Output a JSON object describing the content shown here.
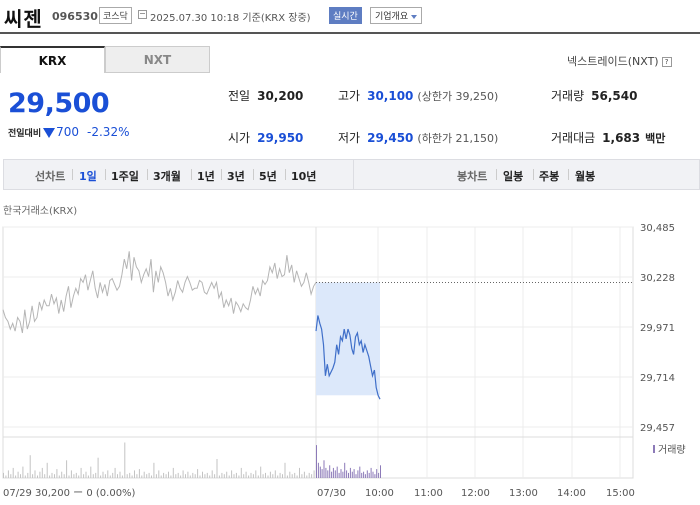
{
  "header": {
    "name": "씨젠",
    "code": "096530",
    "market": "코스닥",
    "datetime": "2025.07.30 10:18 기준(KRX 장중)",
    "realtime_label": "실시간",
    "company_info_label": "기업개요"
  },
  "exchange_tabs": [
    "KRX",
    "NXT"
  ],
  "nxt_trade_label": "넥스트레이드(NXT)",
  "quote": {
    "price": "29,500",
    "change_label": "전일대비",
    "change": "700",
    "change_pct": "-2.32%"
  },
  "stats": {
    "prev_close": {
      "label": "전일",
      "value": "30,200"
    },
    "high": {
      "label": "고가",
      "value": "30,100",
      "sub": "(상한가 39,250)"
    },
    "volume": {
      "label": "거래량",
      "value": "56,540"
    },
    "open": {
      "label": "시가",
      "value": "29,950"
    },
    "low": {
      "label": "저가",
      "value": "29,450",
      "sub": "(하한가 21,150)"
    },
    "amount": {
      "label": "거래대금",
      "value": "1,683",
      "unit": "백만"
    }
  },
  "period_bar": {
    "line_label": "선차트",
    "line_periods": [
      "1일",
      "1주일",
      "3개월",
      "1년",
      "3년",
      "5년",
      "10년"
    ],
    "selected": "1일",
    "candle_label": "봉차트",
    "candle_periods": [
      "일봉",
      "주봉",
      "월봉"
    ]
  },
  "chart_exchange_label": "한국거래소(KRX)",
  "colors": {
    "accent": "#1a4fd6",
    "today_line": "#3f6fc9",
    "prev_line": "#b5b5b5",
    "fill": "#dce8fa",
    "volume_today": "#8c7ab8",
    "volume_prev": "#c3c3c3"
  },
  "chart_data": {
    "type": "line",
    "y_ticks": [
      "30,485",
      "30,228",
      "29,971",
      "29,714",
      "29,457"
    ],
    "ylim": [
      29457,
      30485
    ],
    "x_ticks": [
      "07/29",
      "07/30",
      "10:00",
      "11:00",
      "12:00",
      "13:00",
      "14:00",
      "15:00"
    ],
    "prev_day_caption": "07/29  30,200 ー 0 (0.00%)",
    "volume_legend": "거래량",
    "prev_close_ref": 30200,
    "series": [
      {
        "values": [
          30060,
          30020,
          30000,
          29960,
          29990,
          29950,
          30020,
          30000,
          29940,
          30060,
          29960,
          30000,
          30080,
          30000,
          30020,
          30100,
          30060,
          30110,
          30080,
          30080,
          30140,
          30090,
          30120,
          30040,
          30110,
          30050,
          30130,
          30180,
          30070,
          30130,
          30170,
          30140,
          30220,
          30200,
          30240,
          30160,
          30210,
          30260,
          30170,
          30120,
          30200,
          30150,
          30190,
          30130,
          30210,
          30220,
          30190,
          30160,
          30180,
          30240,
          30320,
          30270,
          30360,
          30210,
          30330,
          30280,
          30260,
          30200,
          30240,
          30270,
          30230,
          30320,
          30150,
          30260,
          30200,
          30280,
          30250,
          30200,
          30130,
          30170,
          30110,
          30150,
          30210,
          30170,
          30150,
          30200,
          30230,
          30200,
          30160,
          30170,
          30170,
          30210,
          30200,
          30150,
          30140,
          30170,
          30200,
          30170,
          30200,
          30120,
          30150,
          30070,
          30110,
          30080,
          30120,
          30040,
          30100,
          30080,
          30050,
          30090,
          30070,
          30060,
          30110,
          30180,
          30140,
          30170,
          30130,
          30210,
          30190,
          30210,
          30280,
          30250,
          30300,
          30220,
          30270,
          30230,
          30240,
          30340,
          30250,
          30290,
          30200,
          30260,
          30220,
          30180,
          30200,
          30250,
          30200,
          30140,
          30180,
          30200
        ]
      },
      {
        "values": [
          29950,
          30030,
          29990,
          29960,
          29880,
          29720,
          29780,
          29720,
          29740,
          29760,
          29790,
          29880,
          29830,
          29920,
          29900,
          29960,
          29910,
          29960,
          29930,
          29860,
          29830,
          29920,
          29940,
          29880,
          29900,
          29840,
          29880,
          29850,
          29820,
          29770,
          29720,
          29750,
          29660,
          29620,
          29600
        ]
      }
    ],
    "volume_prev": [
      4,
      2,
      6,
      3,
      8,
      2,
      5,
      3,
      9,
      2,
      4,
      18,
      3,
      6,
      2,
      5,
      8,
      3,
      12,
      2,
      4,
      3,
      7,
      2,
      5,
      3,
      14,
      2,
      6,
      3,
      4,
      2,
      8,
      3,
      5,
      2,
      9,
      3,
      4,
      16,
      2,
      5,
      3,
      6,
      2,
      4,
      8,
      3,
      5,
      2,
      28,
      3,
      4,
      2,
      6,
      3,
      7,
      2,
      5,
      3,
      4,
      2,
      12,
      3,
      6,
      2,
      4,
      3,
      5,
      2,
      8,
      3,
      4,
      2,
      6,
      3,
      5,
      2,
      4,
      3,
      7,
      2,
      5,
      3,
      4,
      2,
      6,
      3,
      15,
      2,
      4,
      3,
      5,
      2,
      6,
      3,
      4,
      2,
      8,
      3,
      5,
      2,
      4,
      3,
      6,
      2,
      9,
      3,
      4,
      2,
      5,
      3,
      6,
      2,
      4,
      3,
      12,
      2,
      5,
      3,
      4,
      2,
      8,
      3,
      5,
      2,
      4,
      3,
      6,
      2
    ],
    "volume_today": [
      26,
      12,
      9,
      7,
      14,
      8,
      6,
      10,
      5,
      8,
      6,
      9,
      4,
      7,
      5,
      12,
      6,
      4,
      8,
      5,
      7,
      3,
      6,
      9,
      4,
      5,
      3,
      6,
      4,
      8,
      5,
      3,
      7,
      4,
      10
    ]
  }
}
